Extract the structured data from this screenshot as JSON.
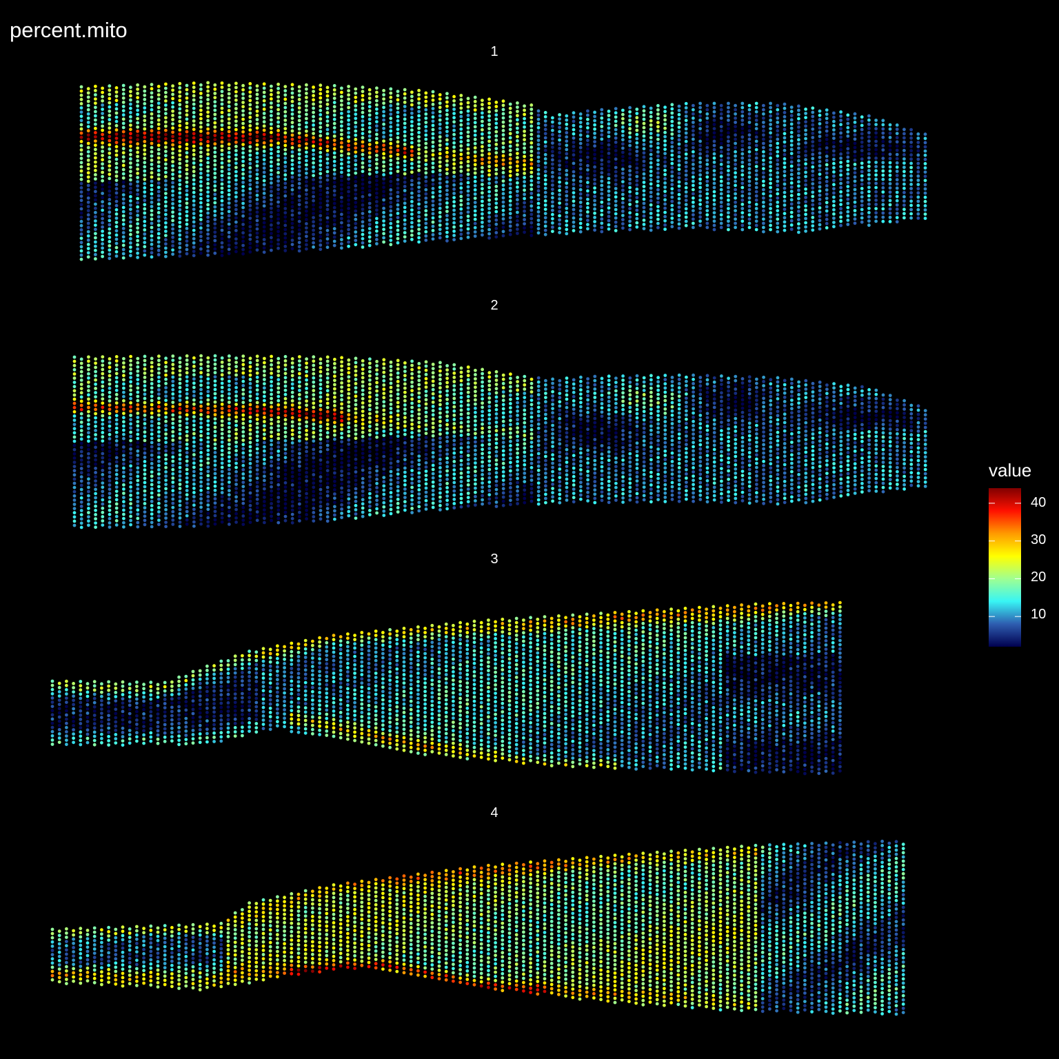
{
  "title": "percent.mito",
  "panels": [
    {
      "label": "1"
    },
    {
      "label": "2"
    },
    {
      "label": "3"
    },
    {
      "label": "4"
    }
  ],
  "legend": {
    "title": "value",
    "ticks": [
      "40",
      "30",
      "20",
      "10"
    ],
    "tick_values": [
      40,
      30,
      20,
      10
    ],
    "range": [
      2,
      44
    ],
    "palette": [
      "#00004F",
      "#2E5DB0",
      "#38F5F5",
      "#A0FF90",
      "#FFFF00",
      "#FF9A00",
      "#FF1000",
      "#800000"
    ]
  },
  "chart_data": {
    "type": "scatter",
    "title": "percent.mito",
    "facets": [
      "1",
      "2",
      "3",
      "4"
    ],
    "color_variable": "value",
    "color_range": [
      2,
      44
    ],
    "legend_ticks": [
      10,
      20,
      30,
      40
    ],
    "legend_position": "right",
    "grid": false,
    "axes": false,
    "background": "#000000"
  }
}
